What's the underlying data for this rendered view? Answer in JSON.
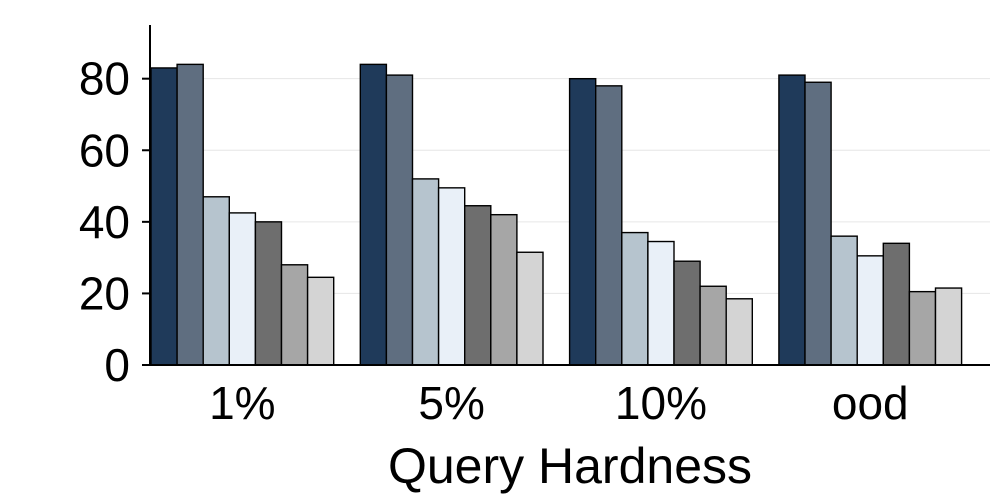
{
  "chart_data": {
    "type": "bar",
    "title": "",
    "xlabel": "Query Hardness",
    "ylabel": "",
    "categories": [
      "1%",
      "5%",
      "10%",
      "ood"
    ],
    "ylim": [
      0,
      95
    ],
    "yticks": [
      0,
      20,
      40,
      60,
      80
    ],
    "ytick_labels": [
      "0",
      "20",
      "40",
      "60",
      "80"
    ],
    "grid": "horizontal",
    "legend": "none",
    "series": [
      {
        "color": "#1f3a5a",
        "values": [
          83,
          84,
          80,
          81
        ]
      },
      {
        "color": "#5f6e80",
        "values": [
          84,
          81,
          78,
          79
        ]
      },
      {
        "color": "#b6c4ce",
        "values": [
          47,
          52,
          37,
          36
        ]
      },
      {
        "color": "#e9f0f8",
        "values": [
          42.5,
          49.5,
          34.5,
          30.5
        ]
      },
      {
        "color": "#6e6e6e",
        "values": [
          40,
          44.5,
          29,
          34
        ]
      },
      {
        "color": "#a6a6a6",
        "values": [
          28,
          42,
          22,
          20.5
        ]
      },
      {
        "color": "#d4d4d4",
        "values": [
          24.5,
          31.5,
          18.5,
          21.5
        ]
      }
    ]
  }
}
